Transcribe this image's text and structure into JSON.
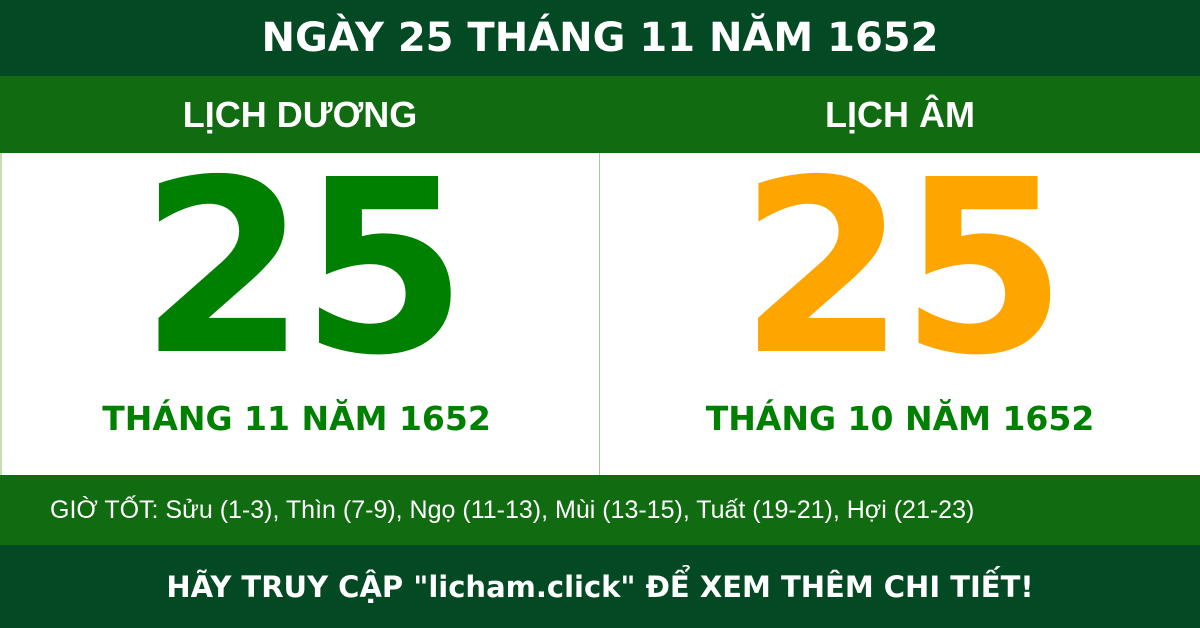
{
  "title": "NGÀY 25 THÁNG 11 NĂM 1652",
  "solar": {
    "heading": "LỊCH DƯƠNG",
    "day": "25",
    "month_year": "THÁNG 11 NĂM 1652"
  },
  "lunar": {
    "heading": "LỊCH ÂM",
    "day": "25",
    "month_year": "THÁNG 10 NĂM 1652"
  },
  "good_hours": "GIỜ TỐT: Sửu (1-3), Thìn (7-9), Ngọ (11-13), Mùi (13-15), Tuất (19-21), Hợi (21-23)",
  "footer": "HÃY TRUY CẬP \"licham.click\" ĐỂ XEM THÊM CHI TIẾT!",
  "colors": {
    "dark_green": "#034923",
    "green": "#116b10",
    "solar_day": "#008000",
    "lunar_day": "#ffa500"
  }
}
